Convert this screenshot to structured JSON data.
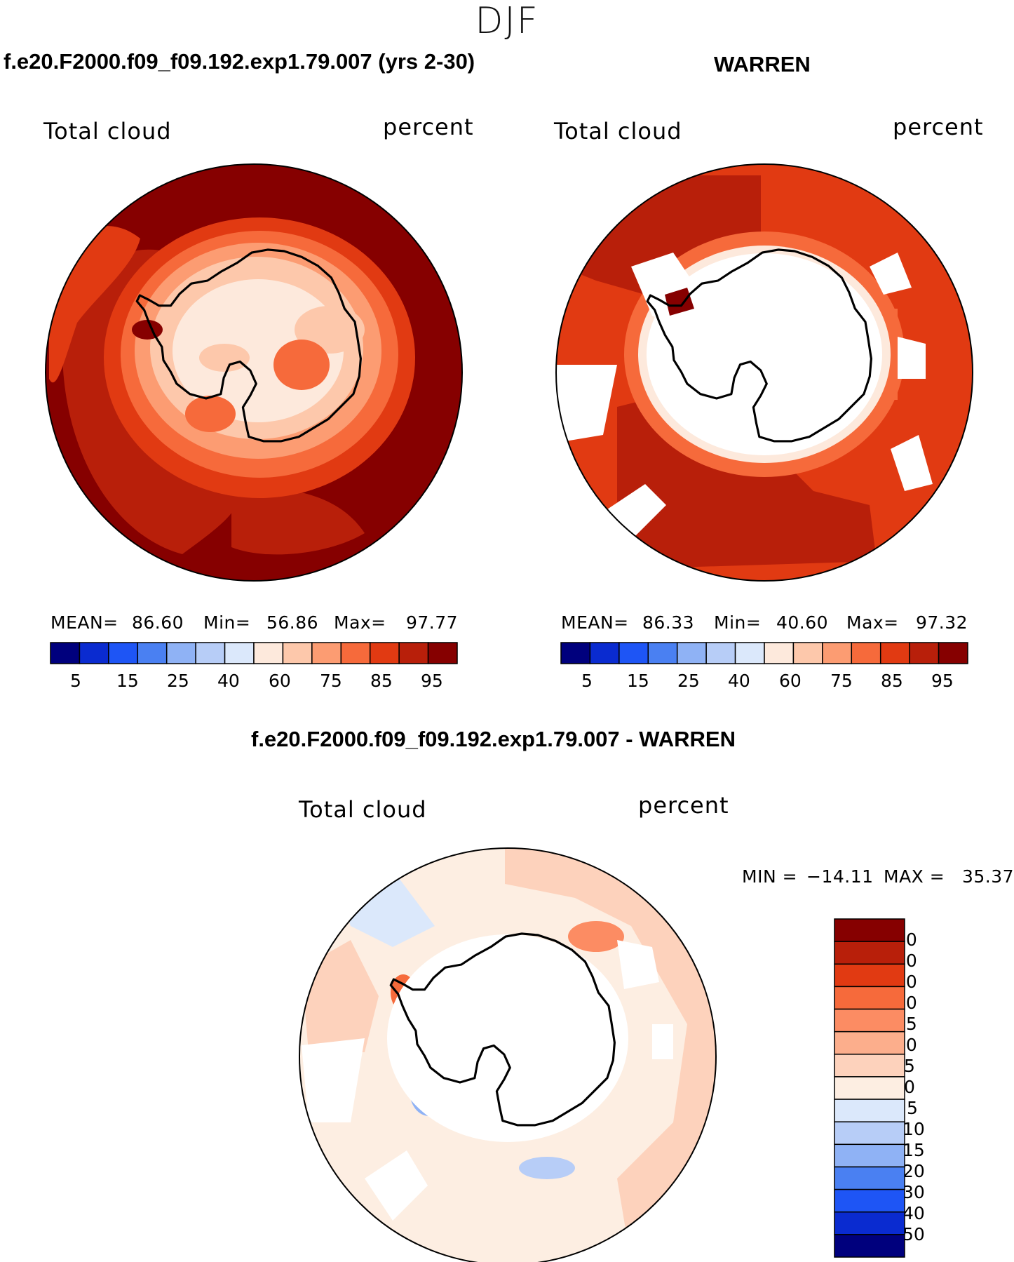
{
  "page": {
    "title": "DJF"
  },
  "panels": {
    "model": {
      "case_title": "f.e20.F2000.f09_f09.192.exp1.79.007 (yrs 2-30)",
      "variable": "Total cloud",
      "units": "percent",
      "stats": {
        "mean_label": "MEAN=",
        "mean": "86.60",
        "min_label": "Min=",
        "min": "56.86",
        "max_label": "Max=",
        "max": "97.77"
      }
    },
    "obs": {
      "case_title": "WARREN",
      "variable": "Total cloud",
      "units": "percent",
      "stats": {
        "mean_label": "MEAN=",
        "mean": "86.33",
        "min_label": "Min=",
        "min": "40.60",
        "max_label": "Max=",
        "max": "97.32"
      }
    },
    "diff": {
      "case_title": "f.e20.F2000.f09_f09.192.exp1.79.007 - WARREN",
      "variable": "Total cloud",
      "units": "percent",
      "stats": {
        "min_label": "MIN =",
        "min": "−14.11",
        "max_label": "MAX =",
        "max": "35.37"
      }
    }
  },
  "abs_colorbar": {
    "colors": [
      "#00007d",
      "#0a2bd0",
      "#1e55f5",
      "#4a80f2",
      "#8fb2f5",
      "#b7cdf7",
      "#dbe8fb",
      "#fde9dc",
      "#fdc8ab",
      "#fc9c72",
      "#f66a3b",
      "#e13a12",
      "#b81f0a",
      "#860000"
    ],
    "tick_labels": [
      "5",
      "15",
      "25",
      "40",
      "60",
      "75",
      "85",
      "95"
    ]
  },
  "diff_colorbar": {
    "colors": [
      "#860000",
      "#b81f0a",
      "#e13a12",
      "#f66a3b",
      "#fc8c63",
      "#fcae8c",
      "#fdd2bc",
      "#fdeee2",
      "#dbe8fb",
      "#b7cdf7",
      "#8fb2f5",
      "#4a80f2",
      "#1e55f5",
      "#0a2bd0",
      "#00007d"
    ],
    "tick_labels": [
      "50",
      "40",
      "30",
      "20",
      "15",
      "10",
      "5",
      "0",
      "−5",
      "−10",
      "−15",
      "−20",
      "−30",
      "−40",
      "−50"
    ]
  }
}
